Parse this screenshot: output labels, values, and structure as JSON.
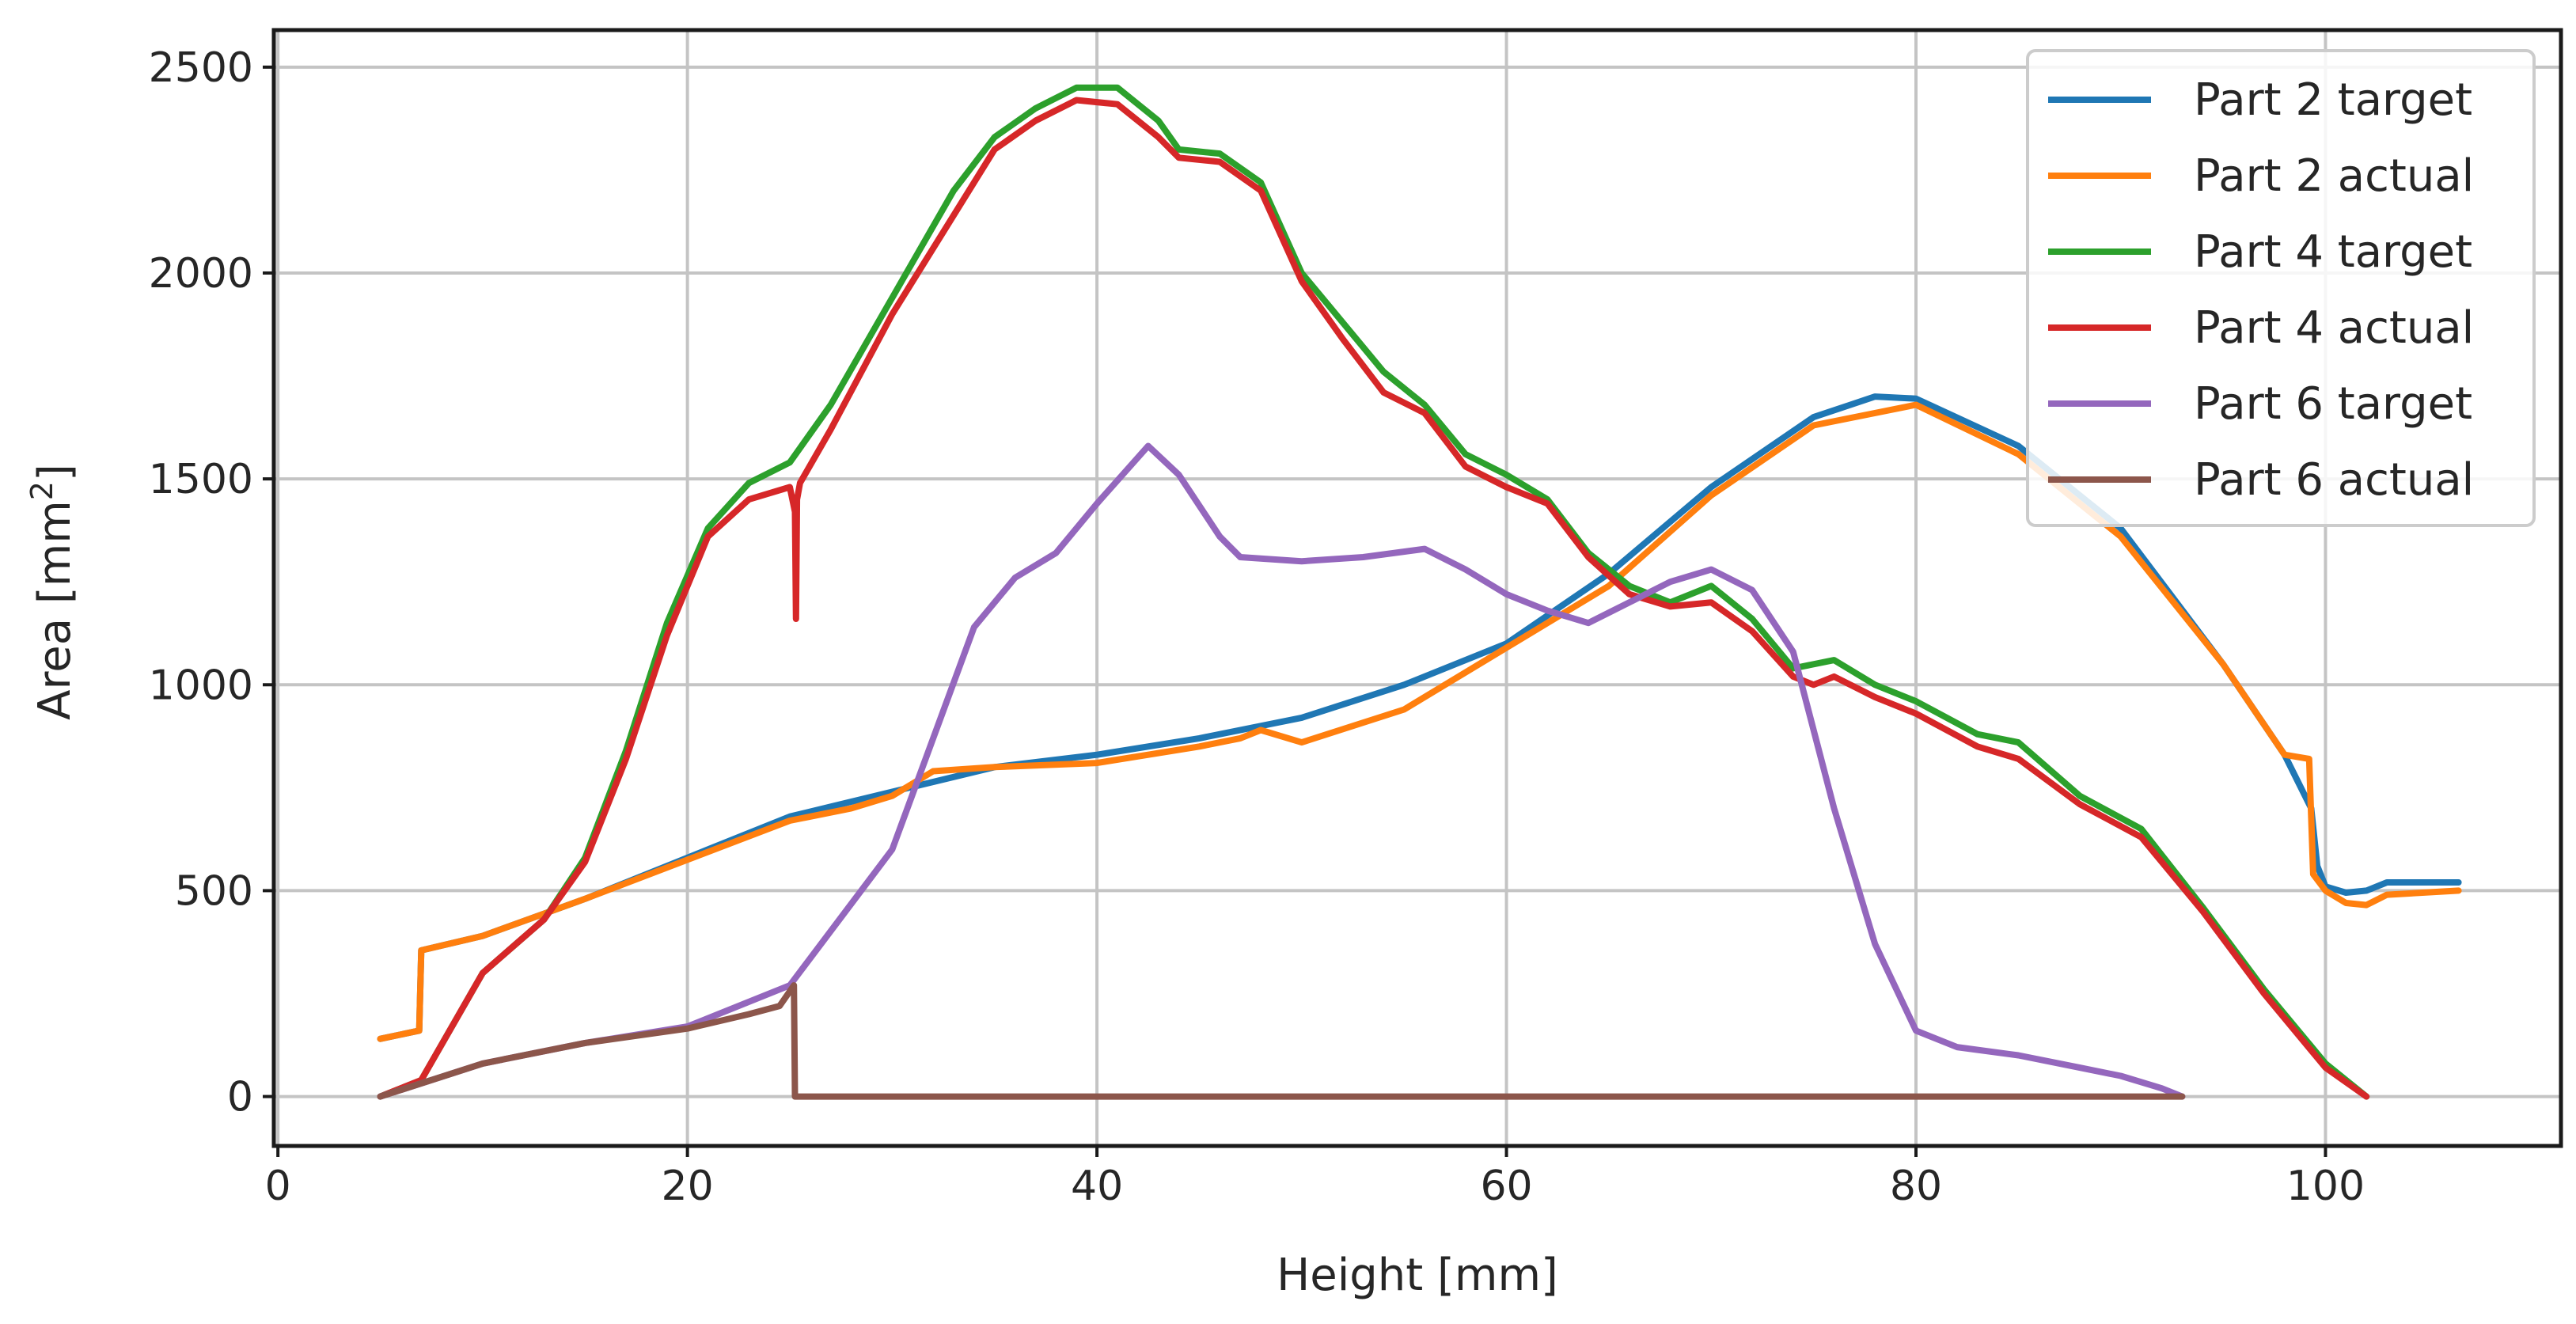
{
  "chart_data": {
    "type": "line",
    "xlabel": "Height [mm]",
    "ylabel": "Area [mm",
    "ylabel_sup": "2",
    "ylabel_end": "]",
    "xlim": [
      -0.2,
      111.5
    ],
    "ylim": [
      -120,
      2590
    ],
    "xticks": [
      0,
      20,
      40,
      60,
      80,
      100
    ],
    "xtick_labels": [
      "0",
      "20",
      "40",
      "60",
      "80",
      "100"
    ],
    "yticks": [
      0,
      500,
      1000,
      1500,
      2000,
      2500
    ],
    "ytick_labels": [
      "0",
      "500",
      "1000",
      "1500",
      "2000",
      "2500"
    ],
    "grid": true,
    "legend_position": "top-right",
    "series": [
      {
        "name": "Part 2 target",
        "color": "#1f77b4",
        "x": [
          5,
          6.9,
          7,
          10,
          15,
          20,
          25,
          30,
          35,
          40,
          45,
          50,
          55,
          60,
          65,
          70,
          75,
          78,
          80,
          85,
          90,
          95,
          98,
          99.3,
          99.6,
          100,
          101,
          102,
          103,
          106.5
        ],
        "y": [
          140,
          160,
          355,
          390,
          480,
          580,
          680,
          740,
          800,
          830,
          870,
          920,
          1000,
          1100,
          1270,
          1480,
          1650,
          1700,
          1695,
          1580,
          1380,
          1050,
          830,
          700,
          560,
          510,
          495,
          500,
          520,
          520
        ]
      },
      {
        "name": "Part 2 actual",
        "color": "#ff7f0e",
        "x": [
          5,
          6.9,
          7,
          10,
          15,
          20,
          25,
          28,
          30,
          32,
          35,
          40,
          45,
          47,
          48,
          50,
          55,
          60,
          65,
          70,
          75,
          80,
          85,
          90,
          95,
          98,
          99.2,
          99.4,
          100,
          101,
          102,
          103,
          106.5
        ],
        "y": [
          140,
          160,
          355,
          390,
          480,
          575,
          670,
          700,
          730,
          790,
          800,
          810,
          850,
          870,
          890,
          860,
          940,
          1090,
          1240,
          1460,
          1630,
          1680,
          1560,
          1360,
          1050,
          830,
          820,
          540,
          500,
          470,
          465,
          490,
          500
        ]
      },
      {
        "name": "Part 4 target",
        "color": "#2ca02c",
        "x": [
          5,
          7,
          10,
          13,
          15,
          17,
          19,
          21,
          23,
          25,
          27,
          30,
          33,
          35,
          37,
          39,
          41,
          43,
          44,
          46,
          48,
          50,
          52,
          54,
          56,
          58,
          60,
          62,
          64,
          66,
          68,
          70,
          72,
          74,
          76,
          78,
          80,
          83,
          85,
          88,
          91,
          94,
          97,
          100,
          102
        ],
        "y": [
          0,
          40,
          300,
          430,
          580,
          840,
          1150,
          1380,
          1490,
          1540,
          1680,
          1940,
          2200,
          2330,
          2400,
          2450,
          2450,
          2370,
          2300,
          2290,
          2220,
          2000,
          1880,
          1760,
          1680,
          1560,
          1510,
          1450,
          1320,
          1240,
          1200,
          1240,
          1160,
          1040,
          1060,
          1000,
          960,
          880,
          860,
          730,
          650,
          460,
          260,
          80,
          0
        ]
      },
      {
        "name": "Part 4 actual",
        "color": "#d62728",
        "x": [
          5,
          7,
          10,
          13,
          15,
          17,
          19,
          21,
          23,
          25,
          25.25,
          25.3,
          25.35,
          25.5,
          27,
          30,
          33,
          35,
          37,
          39,
          41,
          43,
          44,
          46,
          48,
          50,
          52,
          54,
          56,
          58,
          60,
          62,
          64,
          66,
          68,
          70,
          72,
          74,
          75,
          76,
          78,
          80,
          83,
          85,
          88,
          91,
          94,
          97,
          100,
          102
        ],
        "y": [
          0,
          40,
          300,
          430,
          570,
          820,
          1120,
          1360,
          1450,
          1480,
          1420,
          1160,
          1450,
          1490,
          1620,
          1900,
          2140,
          2300,
          2370,
          2420,
          2410,
          2330,
          2280,
          2270,
          2200,
          1980,
          1840,
          1710,
          1660,
          1530,
          1480,
          1440,
          1310,
          1220,
          1190,
          1200,
          1130,
          1020,
          1000,
          1020,
          970,
          930,
          850,
          820,
          710,
          630,
          450,
          250,
          70,
          0
        ]
      },
      {
        "name": "Part 6 target",
        "color": "#9467bd",
        "x": [
          5,
          10,
          15,
          20,
          25,
          30,
          34,
          36,
          38,
          40,
          42.5,
          44,
          46,
          47,
          50,
          53,
          56,
          58,
          60,
          62,
          64,
          66,
          68,
          70,
          72,
          74,
          76,
          78,
          80,
          82,
          85,
          88,
          90,
          92,
          93
        ],
        "y": [
          0,
          80,
          130,
          170,
          270,
          600,
          1140,
          1260,
          1320,
          1440,
          1580,
          1510,
          1360,
          1310,
          1300,
          1310,
          1330,
          1280,
          1220,
          1180,
          1150,
          1200,
          1250,
          1280,
          1230,
          1080,
          700,
          370,
          160,
          120,
          100,
          70,
          50,
          20,
          0
        ]
      },
      {
        "name": "Part 6 actual",
        "color": "#8c564b",
        "x": [
          5,
          10,
          15,
          20,
          23,
          24.5,
          25.2,
          25.25,
          93
        ],
        "y": [
          0,
          80,
          130,
          165,
          200,
          220,
          270,
          0,
          0
        ]
      }
    ]
  }
}
